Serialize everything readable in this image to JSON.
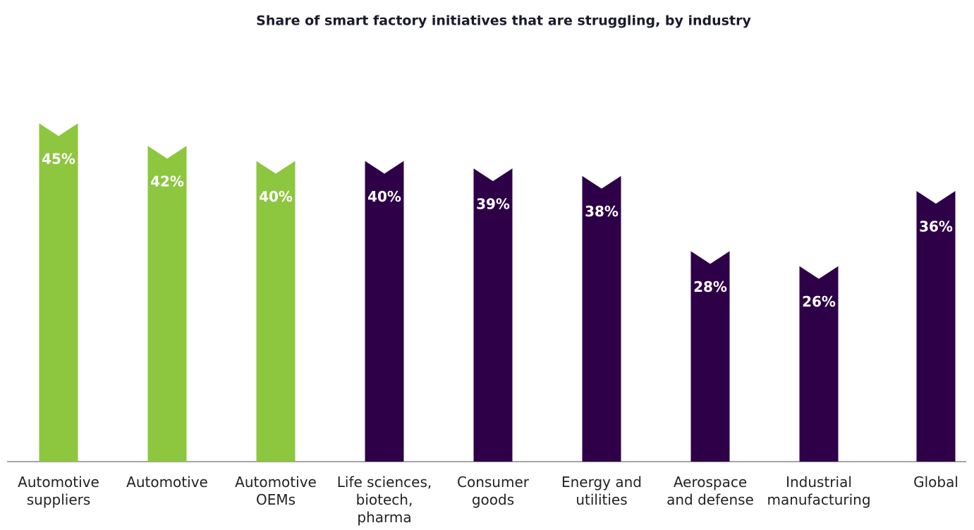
{
  "chart_data": {
    "type": "bar",
    "title": "Share of smart factory initiatives that are struggling, by industry",
    "categories": [
      "Automotive\nsuppliers",
      "Automotive",
      "Automotive\nOEMs",
      "Life sciences,\nbiotech,\npharma",
      "Consumer\ngoods",
      "Energy and\nutilities",
      "Aerospace\nand defense",
      "Industrial\nmanufacturing",
      "Global"
    ],
    "values": [
      45,
      42,
      40,
      40,
      39,
      38,
      28,
      26,
      36
    ],
    "value_labels": [
      "45%",
      "42%",
      "40%",
      "40%",
      "39%",
      "38%",
      "28%",
      "26%",
      "36%"
    ],
    "colors": [
      "#8dc63f",
      "#8dc63f",
      "#8dc63f",
      "#2d0047",
      "#2d0047",
      "#2d0047",
      "#2d0047",
      "#2d0047",
      "#2d0047"
    ],
    "ylim": [
      0,
      60
    ]
  }
}
